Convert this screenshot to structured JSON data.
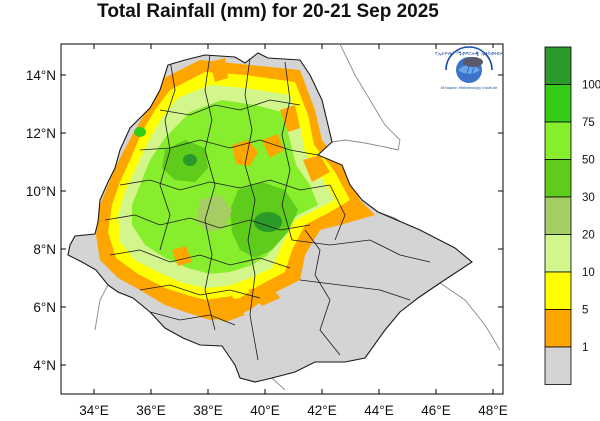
{
  "title": "Total Rainfall (mm) for 20-21 Sep 2025",
  "logo": {
    "name": "ethiopian-meteorology-institute-logo",
    "top_text": "የኢትዮጵያ ሜቲዎሮሎጂ ኢንስቲትዩት",
    "bottom_text": "Ethiopian Meteorology Institute"
  },
  "axes": {
    "x_ticks": [
      "34°E",
      "36°E",
      "38°E",
      "40°E",
      "42°E",
      "44°E",
      "46°E",
      "48°E"
    ],
    "y_ticks": [
      "14°N",
      "12°N",
      "10°N",
      "8°N",
      "6°N",
      "4°N"
    ],
    "lon_range": [
      32.5,
      48.5
    ],
    "lat_range": [
      3.2,
      15.0
    ]
  },
  "colorbar": {
    "labels": [
      "100",
      "75",
      "50",
      "30",
      "20",
      "10",
      "5",
      "1"
    ],
    "colors": [
      "#2a9a2a",
      "#34cc16",
      "#86ee2c",
      "#5fcb1a",
      "#a5cd63",
      "#d2f58c",
      "#ffff00",
      "#ffa500",
      "#d4d4d4"
    ]
  },
  "colors": {
    "no_rain": "#d4d4d4",
    "boundary": "#1a1a1a",
    "orange": "#ffa500",
    "yellow": "#ffff00",
    "light_green": "#d2f58c",
    "lime": "#86ee2c",
    "mid_green": "#5fcb1a",
    "dark_green": "#2a9a2a"
  }
}
